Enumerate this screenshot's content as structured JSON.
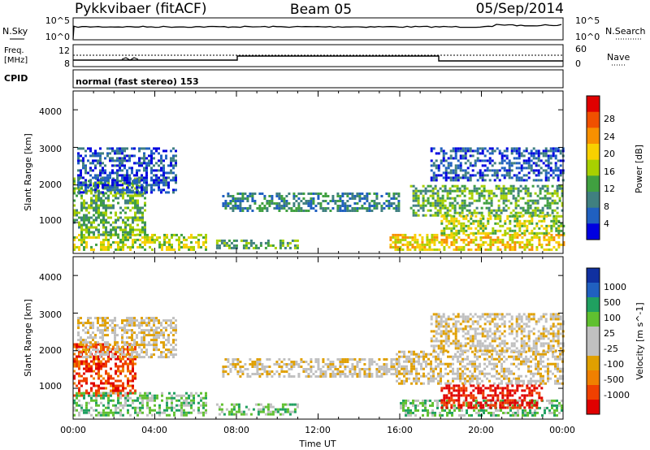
{
  "header": {
    "station": "Pykkvibaer (fitACF)",
    "beam": "Beam 05",
    "date": "05/Sep/2014"
  },
  "noise_panel": {
    "left_label": "N.Sky",
    "right_label": "N.Search",
    "left_ticks": [
      "10^5",
      "10^0"
    ],
    "right_ticks": [
      "10^5",
      "10^0"
    ]
  },
  "freq_panel": {
    "left_label_line1": "Freq.",
    "left_label_line2": "[MHz]",
    "left_ticks": [
      "12",
      "8"
    ],
    "right_label": "Nave",
    "right_ticks": [
      "60",
      "0"
    ]
  },
  "cpid": {
    "label": "CPID",
    "value": "normal (fast stereo) 153"
  },
  "xaxis": {
    "label": "Time UT",
    "ticks": [
      "00:00",
      "04:00",
      "08:00",
      "12:00",
      "16:00",
      "20:00",
      "00:00"
    ]
  },
  "power_colorbar": {
    "label": "Power [dB]",
    "ticks": [
      "28",
      "24",
      "20",
      "16",
      "12",
      "8",
      "4"
    ],
    "colors": [
      "#e00000",
      "#f05000",
      "#f89000",
      "#f8d000",
      "#a8d000",
      "#40a040",
      "#408080",
      "#2060c0",
      "#0000e0"
    ]
  },
  "velocity_colorbar": {
    "label": "Velocity [m s^-1]",
    "ticks": [
      "1000",
      "500",
      "100",
      "25",
      "-25",
      "-100",
      "-500",
      "-1000"
    ],
    "colors": [
      "#1030a0",
      "#2060c0",
      "#20a060",
      "#60c030",
      "#c0c0c0",
      "#c0c0c0",
      "#e0a000",
      "#f08000",
      "#f04000",
      "#e00000"
    ]
  },
  "chart_data": {
    "type": "heatmap",
    "x_range_hours": [
      0,
      24
    ],
    "y_range_km": [
      180,
      4500
    ],
    "ylabel": "Slant Range [km]",
    "xlabel": "Time UT",
    "panels": [
      {
        "name": "Power",
        "ylabel": "Slant Range [km]",
        "yticks": [
          "1000",
          "2000",
          "3000",
          "4000"
        ],
        "bands": [
          {
            "t0": 0.0,
            "t1": 6.5,
            "r0": 300,
            "r1": 700,
            "level": 4
          },
          {
            "t0": 0.0,
            "t1": 3.5,
            "r0": 700,
            "r1": 2200,
            "level": 3
          },
          {
            "t0": 0.2,
            "t1": 5.0,
            "r0": 1800,
            "r1": 3000,
            "level": 1
          },
          {
            "t0": 7.3,
            "t1": 16.0,
            "r0": 1300,
            "r1": 1800,
            "level": 2
          },
          {
            "t0": 7.0,
            "t1": 11.0,
            "r0": 300,
            "r1": 550,
            "level": 3
          },
          {
            "t0": 15.5,
            "t1": 24.0,
            "r0": 250,
            "r1": 700,
            "level": 5
          },
          {
            "t0": 16.5,
            "t1": 24.0,
            "r0": 1200,
            "r1": 2000,
            "level": 3
          },
          {
            "t0": 17.5,
            "t1": 24.0,
            "r0": 2100,
            "r1": 3000,
            "level": 1
          },
          {
            "t0": 18.0,
            "t1": 24.0,
            "r0": 700,
            "r1": 1200,
            "level": 4
          }
        ]
      },
      {
        "name": "Velocity",
        "ylabel": "Slant Range [km]",
        "yticks": [
          "1000",
          "2000",
          "3000",
          "4000"
        ],
        "bands": [
          {
            "t0": 0.0,
            "t1": 3.0,
            "r0": 800,
            "r1": 2200,
            "level": 1
          },
          {
            "t0": 0.2,
            "t1": 5.0,
            "r0": 1800,
            "r1": 2900,
            "level": 4
          },
          {
            "t0": 0.0,
            "t1": 6.5,
            "r0": 300,
            "r1": 900,
            "level": 6
          },
          {
            "t0": 7.0,
            "t1": 11.0,
            "r0": 300,
            "r1": 600,
            "level": 6
          },
          {
            "t0": 7.3,
            "t1": 16.0,
            "r0": 1300,
            "r1": 1800,
            "level": 4
          },
          {
            "t0": 15.8,
            "t1": 24.0,
            "r0": 1100,
            "r1": 2000,
            "level": 4
          },
          {
            "t0": 16.0,
            "t1": 24.0,
            "r0": 300,
            "r1": 700,
            "level": 6
          },
          {
            "t0": 18.0,
            "t1": 23.0,
            "r0": 500,
            "r1": 1100,
            "level": 0
          },
          {
            "t0": 17.5,
            "t1": 24.0,
            "r0": 2000,
            "r1": 3000,
            "level": 4
          }
        ]
      }
    ]
  }
}
